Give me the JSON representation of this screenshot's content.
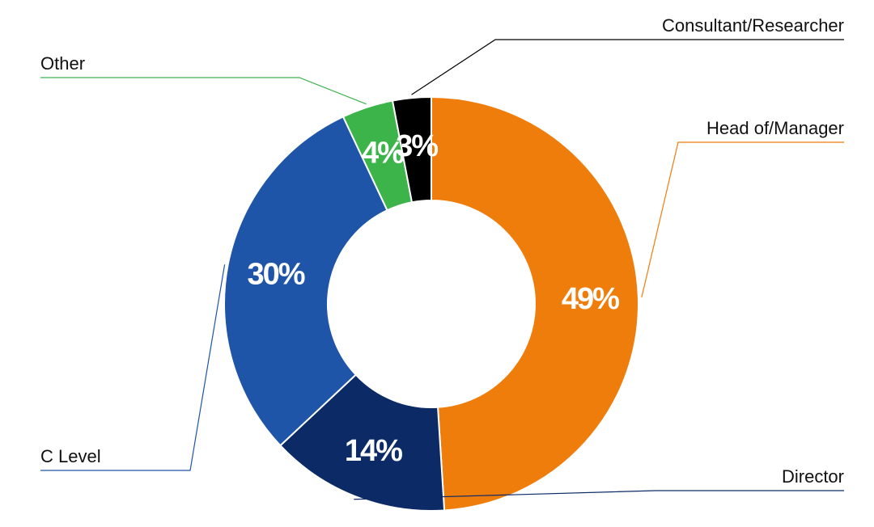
{
  "chart_data": {
    "type": "pie",
    "variant": "donut",
    "start": "top",
    "direction": "clockwise",
    "legend": "none",
    "slices": [
      {
        "name": "Head of/Manager",
        "value": 49,
        "label": "49%",
        "color": "#ef7d0b"
      },
      {
        "name": "Director",
        "value": 14,
        "label": "14%",
        "color": "#0c2a66"
      },
      {
        "name": "C Level",
        "value": 30,
        "label": "30%",
        "color": "#1e55a8"
      },
      {
        "name": "Other",
        "value": 4,
        "label": "4%",
        "color": "#3cb44a"
      },
      {
        "name": "Consultant/Researcher",
        "value": 3,
        "label": "3%",
        "color": "#000000"
      }
    ]
  }
}
